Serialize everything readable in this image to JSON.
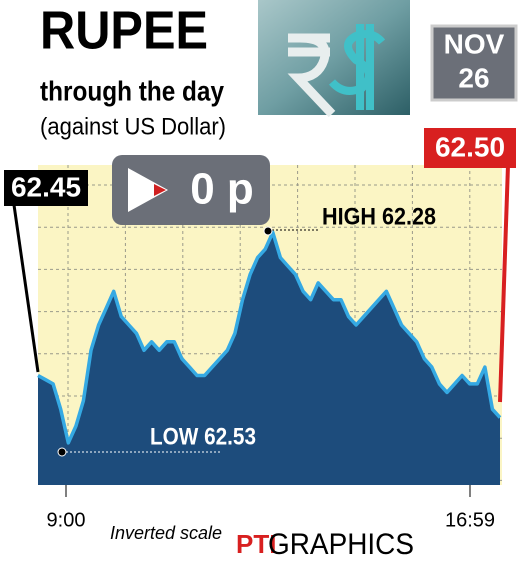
{
  "chart_data": {
    "type": "area",
    "title": "RUPEE",
    "subtitle": "through the day",
    "note": "(against US Dollar)",
    "date_month": "NOV",
    "date_day": "26",
    "change": "0 p",
    "open_label": "62.45",
    "close_label": "62.50",
    "high_label": "HIGH 62.28",
    "low_label": "LOW 62.53",
    "scale_note": "Inverted scale",
    "source_logo": "PTI",
    "source": "GRAPHICS",
    "inverted": true,
    "ylim": [
      62.2,
      62.58
    ],
    "line_color": "#35a9e3",
    "fill_color": "#1d4c7c",
    "background": "#fbf5c4",
    "categories": [
      "9:00",
      null,
      null,
      null,
      null,
      null,
      null,
      null,
      null,
      null,
      null,
      null,
      null,
      null,
      null,
      null,
      null,
      null,
      null,
      null,
      null,
      null,
      null,
      null,
      null,
      null,
      null,
      null,
      null,
      null,
      null,
      null,
      null,
      null,
      null,
      null,
      null,
      null,
      null,
      null,
      null,
      null,
      null,
      null,
      null,
      null,
      null,
      null,
      null,
      null,
      null,
      null,
      null,
      null,
      null,
      null,
      null,
      null,
      null,
      null,
      null,
      "16:59"
    ],
    "values": [
      62.45,
      62.455,
      62.46,
      62.49,
      62.53,
      62.51,
      62.48,
      62.42,
      62.39,
      62.37,
      62.35,
      62.38,
      62.39,
      62.4,
      62.42,
      62.41,
      62.42,
      62.41,
      62.41,
      62.43,
      62.44,
      62.45,
      62.45,
      62.44,
      62.43,
      62.42,
      62.4,
      62.36,
      62.33,
      62.31,
      62.3,
      62.28,
      62.31,
      62.32,
      62.33,
      62.35,
      62.36,
      62.34,
      62.35,
      62.36,
      62.36,
      62.38,
      62.39,
      62.38,
      62.37,
      62.36,
      62.35,
      62.37,
      62.39,
      62.4,
      62.41,
      62.43,
      62.44,
      62.46,
      62.47,
      62.46,
      62.45,
      62.46,
      62.46,
      62.44,
      62.49,
      62.5
    ]
  }
}
